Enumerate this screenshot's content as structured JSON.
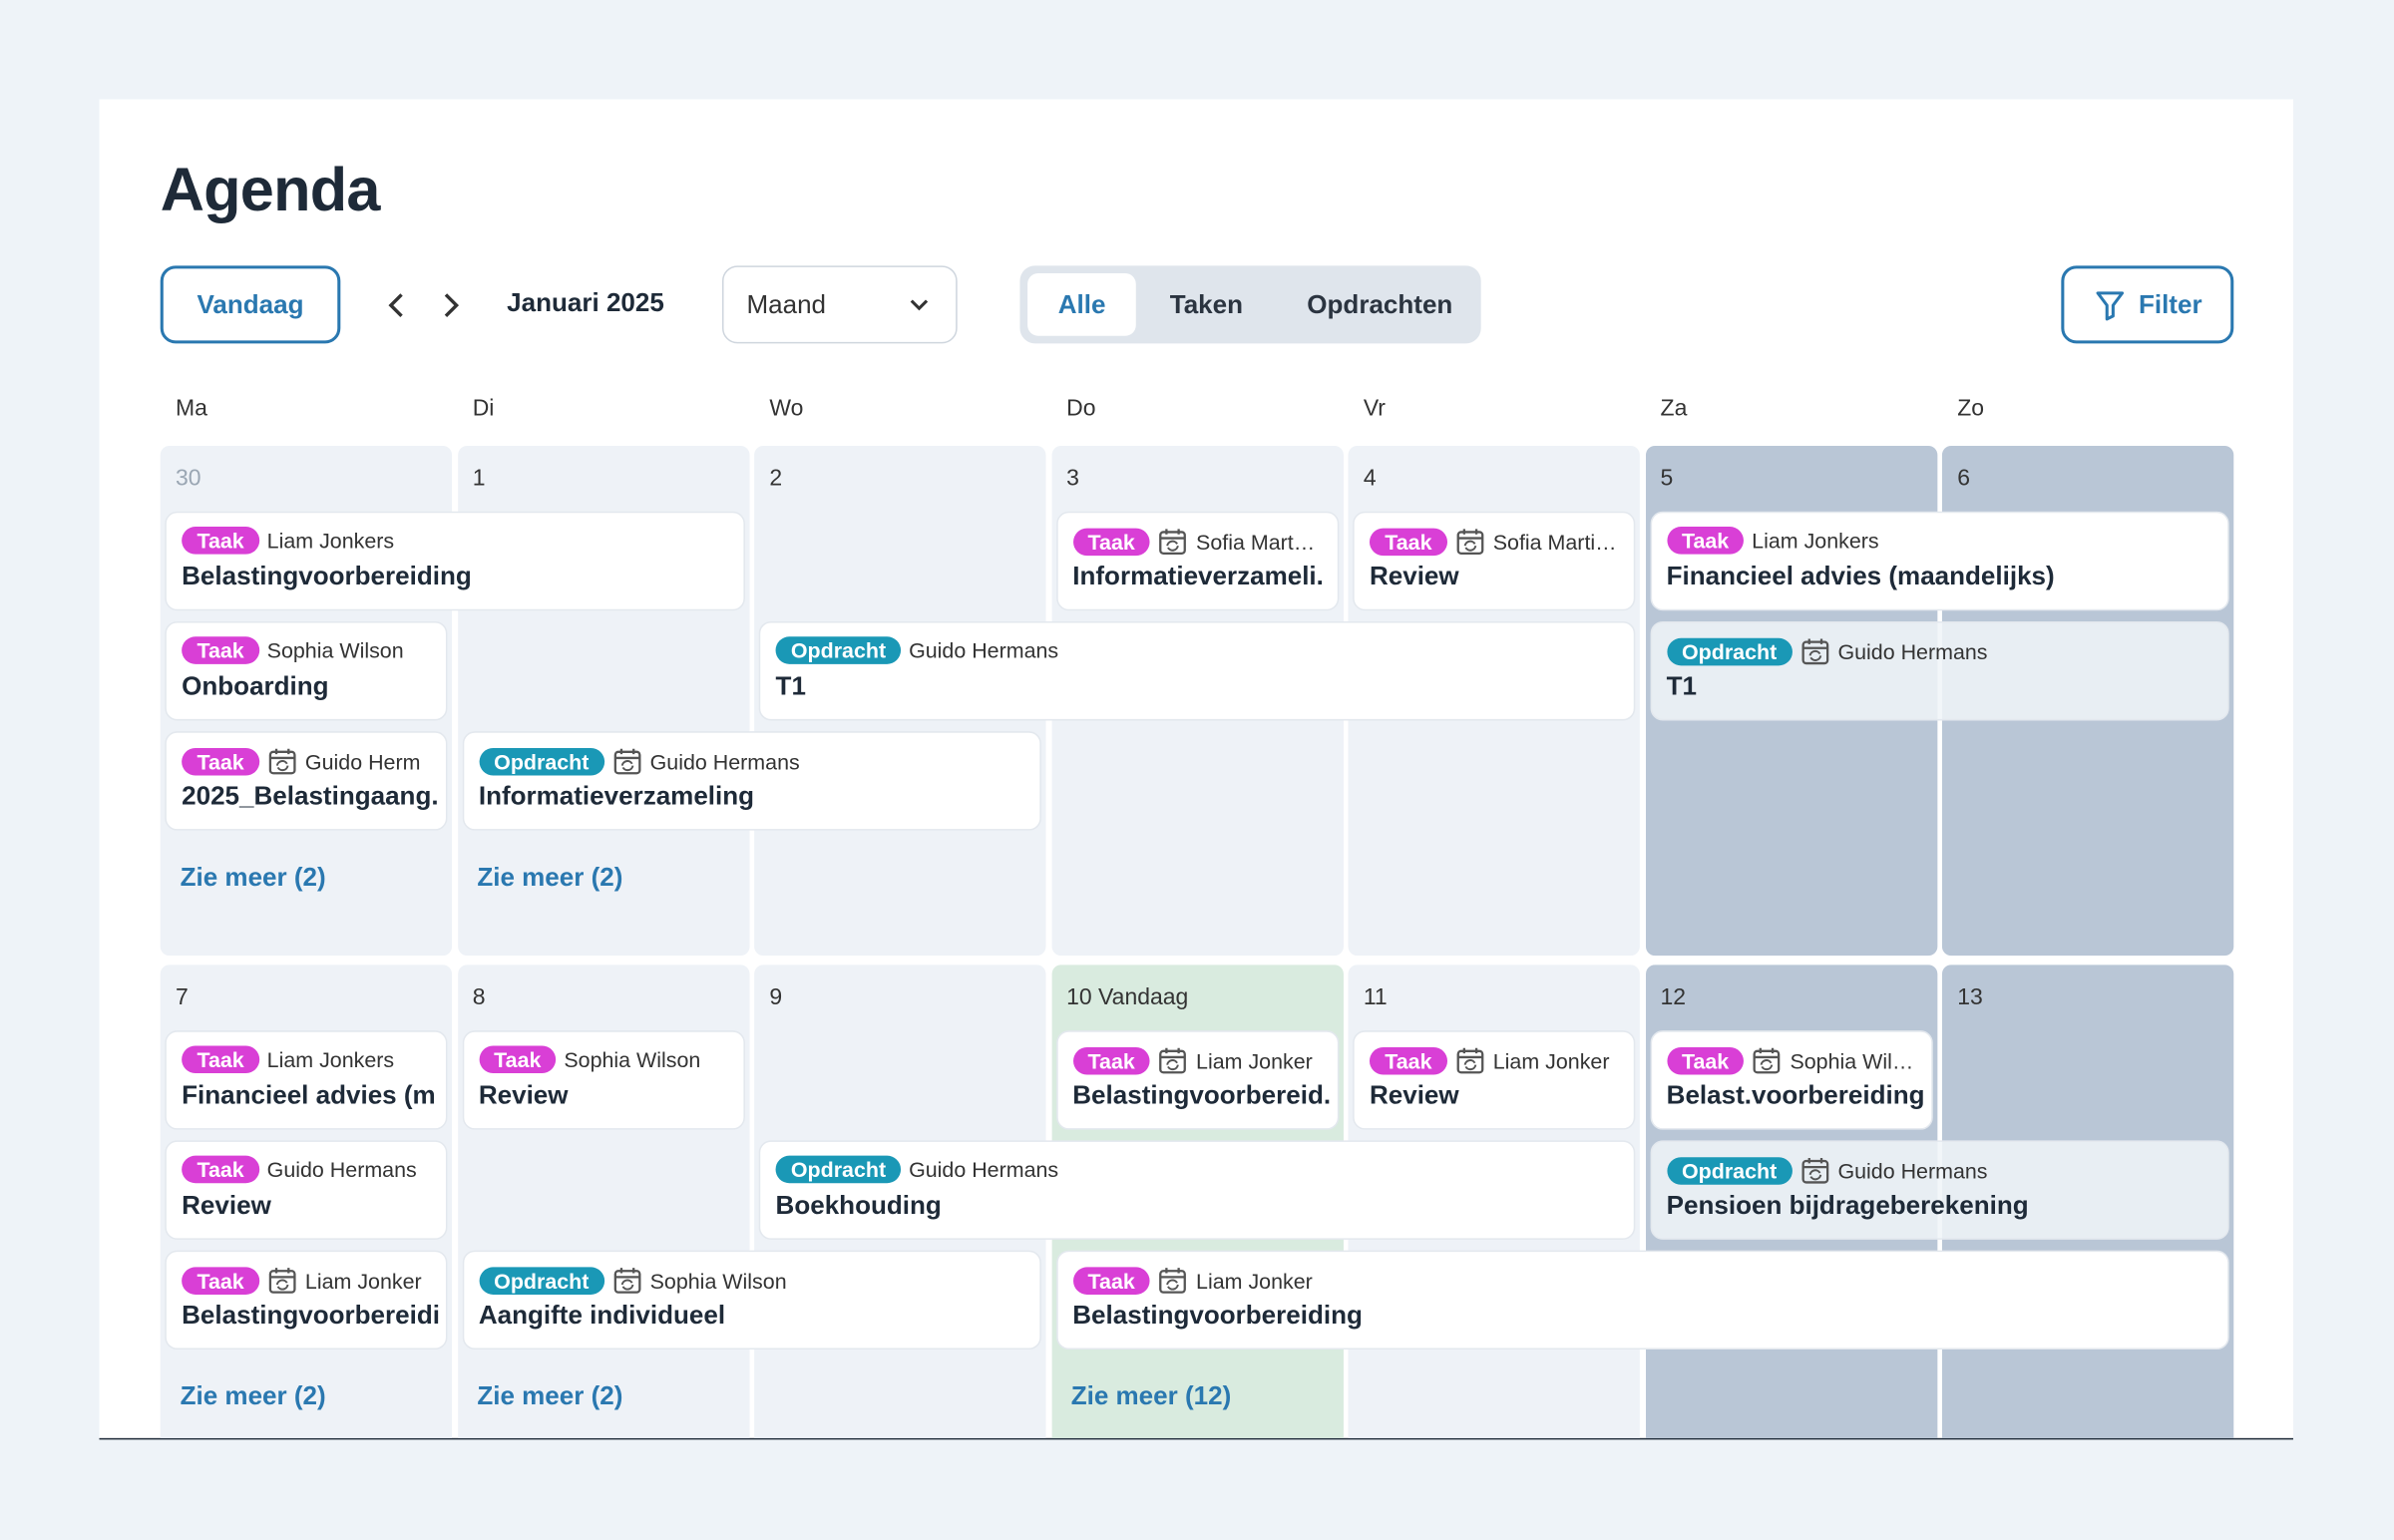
{
  "header": {
    "title": "Agenda"
  },
  "toolbar": {
    "today": "Vandaag",
    "period": "Januari 2025",
    "view": "Maand",
    "segments": [
      "Alle",
      "Taken",
      "Opdrachten"
    ],
    "active_segment": 0,
    "filter": "Filter"
  },
  "weekdays": [
    "Ma",
    "Di",
    "Wo",
    "Do",
    "Vr",
    "Za",
    "Zo"
  ],
  "weeks": [
    {
      "days": [
        {
          "date": "30",
          "outside": true,
          "more": "Zie meer (2)"
        },
        {
          "date": "1",
          "more": "Zie meer (2)"
        },
        {
          "date": "2"
        },
        {
          "date": "3"
        },
        {
          "date": "4"
        },
        {
          "date": "5"
        },
        {
          "date": "6"
        }
      ],
      "events": [
        {
          "date": "30",
          "days": 2,
          "tag": "Taak",
          "person": "Liam Jonkers",
          "title": "Belastingvoorbereiding",
          "recurring": false
        },
        {
          "date": "3",
          "days": 1,
          "tag": "Taak",
          "person": "Sofia Mart…",
          "title": "Informatieverzameli.",
          "recurring": true
        },
        {
          "date": "4",
          "days": 1,
          "tag": "Taak",
          "person": "Sofia Marti…",
          "title": "Review",
          "recurring": true
        },
        {
          "date": "5",
          "days": 2,
          "tag": "Taak",
          "person": "Liam Jonkers",
          "title": "Financieel advies (maandelijks)",
          "recurring": false
        },
        {
          "date": "30",
          "days": 1,
          "tag": "Taak",
          "person": "Sophia Wilson",
          "title": "Onboarding",
          "recurring": false
        },
        {
          "date": "2",
          "days": 3,
          "tag": "Opdracht",
          "person": "Guido Hermans",
          "title": "T1",
          "recurring": false
        },
        {
          "date": "5",
          "days": 2,
          "tag": "Opdracht",
          "person": "Guido Hermans",
          "title": "T1",
          "recurring": true
        },
        {
          "date": "30",
          "days": 1,
          "tag": "Taak",
          "person": "Guido Herm",
          "title": "2025_Belastingaang.",
          "recurring": true
        },
        {
          "date": "1",
          "days": 2,
          "tag": "Opdracht",
          "person": "Guido Hermans",
          "title": "Informatieverzameling",
          "recurring": true
        }
      ]
    },
    {
      "days": [
        {
          "date": "7",
          "more": "Zie meer (2)"
        },
        {
          "date": "8",
          "more": "Zie meer (2)"
        },
        {
          "date": "9"
        },
        {
          "date": "10",
          "today": "Vandaag",
          "more": "Zie meer (12)"
        },
        {
          "date": "11"
        },
        {
          "date": "12"
        },
        {
          "date": "13"
        }
      ],
      "events": [
        {
          "date": "7",
          "days": 1,
          "tag": "Taak",
          "person": "Liam Jonkers",
          "title": "Financieel advies (m",
          "recurring": false
        },
        {
          "date": "8",
          "days": 1,
          "tag": "Taak",
          "person": "Sophia Wilson",
          "title": "Review",
          "recurring": false
        },
        {
          "date": "10",
          "days": 1,
          "tag": "Taak",
          "person": "Liam Jonker",
          "title": "Belastingvoorbereid.",
          "recurring": true
        },
        {
          "date": "11",
          "days": 1,
          "tag": "Taak",
          "person": "Liam Jonker",
          "title": "Review",
          "recurring": true
        },
        {
          "date": "12",
          "days": 1,
          "tag": "Taak",
          "person": "Sophia Wil…",
          "title": "Belast.voorbereiding",
          "recurring": true
        },
        {
          "date": "7",
          "days": 1,
          "tag": "Taak",
          "person": "Guido Hermans",
          "title": "Review",
          "recurring": false
        },
        {
          "date": "9",
          "days": 3,
          "tag": "Opdracht",
          "person": "Guido Hermans",
          "title": "Boekhouding",
          "recurring": false
        },
        {
          "date": "12",
          "days": 2,
          "tag": "Opdracht",
          "person": "Guido Hermans",
          "title": "Pensioen bijdrageberekening",
          "recurring": true
        },
        {
          "date": "7",
          "days": 1,
          "tag": "Taak",
          "person": "Liam Jonker",
          "title": "Belastingvoorbereidi",
          "recurring": true
        },
        {
          "date": "8",
          "days": 2,
          "tag": "Opdracht",
          "person": "Sophia Wilson",
          "title": "Aangifte individueel",
          "recurring": true
        },
        {
          "date": "10",
          "days": 4,
          "tag": "Taak",
          "person": "Liam Jonker",
          "title": "Belastingvoorbereiding",
          "recurring": true
        }
      ]
    }
  ]
}
